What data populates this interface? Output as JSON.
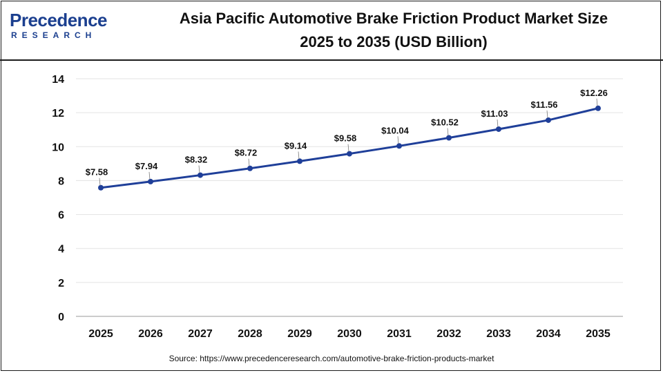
{
  "header": {
    "logo": {
      "word": "Precedence",
      "sub": "RESEARCH"
    },
    "title_line1": "Asia Pacific Automotive Brake Friction Product Market Size",
    "title_line2": "2025 to 2035 (USD Billion)"
  },
  "source": "Source: https://www.precedenceresearch.com/automotive-brake-friction-products-market",
  "colors": {
    "line": "#1f3f99",
    "grid": "#e3e3e3",
    "text": "#111111",
    "brand": "#1b3f8f"
  },
  "chart_data": {
    "type": "line",
    "title": "Asia Pacific Automotive Brake Friction Product Market Size 2025 to 2035 (USD Billion)",
    "categories": [
      "2025",
      "2026",
      "2027",
      "2028",
      "2029",
      "2030",
      "2031",
      "2032",
      "2033",
      "2034",
      "2035"
    ],
    "values": [
      7.58,
      7.94,
      8.32,
      8.72,
      9.14,
      9.58,
      10.04,
      10.52,
      11.03,
      11.56,
      12.26
    ],
    "data_labels": [
      "$7.58",
      "$7.94",
      "$8.32",
      "$8.72",
      "$9.14",
      "$9.58",
      "$10.04",
      "$10.52",
      "$11.03",
      "$11.56",
      "$12.26"
    ],
    "yticks": [
      "0",
      "2",
      "4",
      "6",
      "8",
      "10",
      "12",
      "14"
    ],
    "ylim": [
      0,
      14
    ],
    "grid": true,
    "xlabel": "",
    "ylabel": ""
  }
}
